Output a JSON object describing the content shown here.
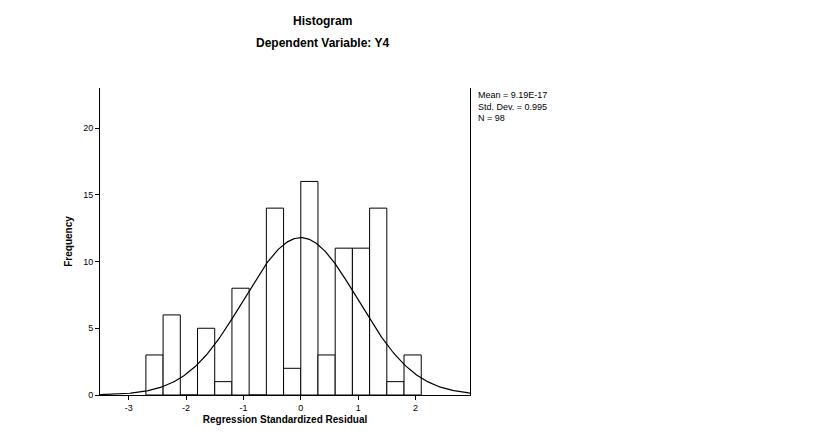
{
  "chart_data": {
    "type": "histogram",
    "title": "Histogram",
    "subtitle": "Dependent Variable: Y4",
    "x_label": "Regression Standardized Residual",
    "y_label": "Frequency",
    "bins": [
      -2.7,
      -2.4,
      -2.1,
      -1.8,
      -1.5,
      -1.2,
      -0.9,
      -0.6,
      -0.3,
      0,
      0.3,
      0.6,
      0.9,
      1.2,
      1.5,
      1.8,
      2.1
    ],
    "values": [
      3,
      6,
      0,
      5,
      1,
      8,
      0,
      14,
      2,
      16,
      3,
      11,
      11,
      14,
      1,
      3
    ],
    "color": "#ffffff",
    "normal_curve": {
      "mean": 9.19e-17,
      "std_dev": 0.995,
      "n": 98
    },
    "stats_text": [
      "Mean = 9.19E-17",
      "Std. Dev. = 0.995",
      "N = 98"
    ],
    "xlim": [
      -3.5,
      2.95
    ],
    "xticks": [
      -3,
      -2,
      -1,
      0,
      1,
      2
    ],
    "ylim": [
      0,
      23
    ],
    "yticks": [
      0,
      5,
      10,
      15,
      20
    ],
    "grid": false
  }
}
